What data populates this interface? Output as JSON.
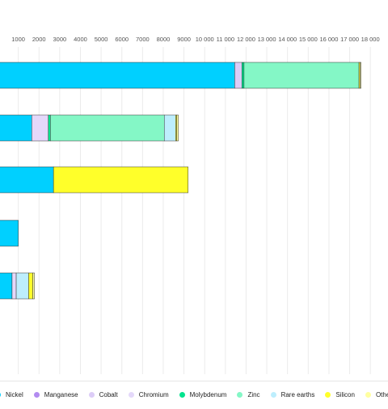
{
  "chart_data": {
    "type": "bar",
    "orientation": "horizontal",
    "stacked": true,
    "title": "",
    "xlabel": "",
    "ylabel": "",
    "xlim": [
      0,
      18500
    ],
    "x_ticks": [
      1000,
      2000,
      3000,
      4000,
      5000,
      6000,
      7000,
      8000,
      9000,
      10000,
      11000,
      12000,
      13000,
      14000,
      15000,
      16000,
      17000,
      18000
    ],
    "x_tick_labels": [
      "1000",
      "2000",
      "3000",
      "4000",
      "5000",
      "6000",
      "7000",
      "8000",
      "9000",
      "10 000",
      "11 000",
      "12 000",
      "13 000",
      "14 000",
      "15 000",
      "16 000",
      "17 000",
      "18 000"
    ],
    "grid": true,
    "legend_position": "bottom",
    "categories": [
      "",
      "",
      "",
      "",
      ""
    ],
    "series": [
      {
        "name": "Nickel",
        "color": "#00d0ff",
        "values": [
          11450,
          1650,
          2700,
          1000,
          700
        ]
      },
      {
        "name": "Manganese",
        "color": "#b28bf0",
        "values": [
          0,
          0,
          0,
          0,
          0
        ]
      },
      {
        "name": "Cobalt",
        "color": "#dcccf7",
        "values": [
          350,
          0,
          0,
          0,
          0
        ]
      },
      {
        "name": "Chromium",
        "color": "#e4d8fa",
        "values": [
          0,
          800,
          0,
          0,
          200
        ]
      },
      {
        "name": "Molybdenum",
        "color": "#00e38e",
        "values": [
          100,
          100,
          0,
          0,
          0
        ]
      },
      {
        "name": "Zinc",
        "color": "#84f7c6",
        "values": [
          5550,
          5500,
          0,
          0,
          0
        ]
      },
      {
        "name": "Rare earths",
        "color": "#bdeefd",
        "values": [
          0,
          550,
          0,
          0,
          600
        ]
      },
      {
        "name": "Silicon",
        "color": "#ffff2a",
        "values": [
          50,
          50,
          6500,
          0,
          200
        ]
      },
      {
        "name": "Others",
        "color": "#ffffa0",
        "values": [
          50,
          80,
          0,
          0,
          80
        ]
      }
    ]
  }
}
